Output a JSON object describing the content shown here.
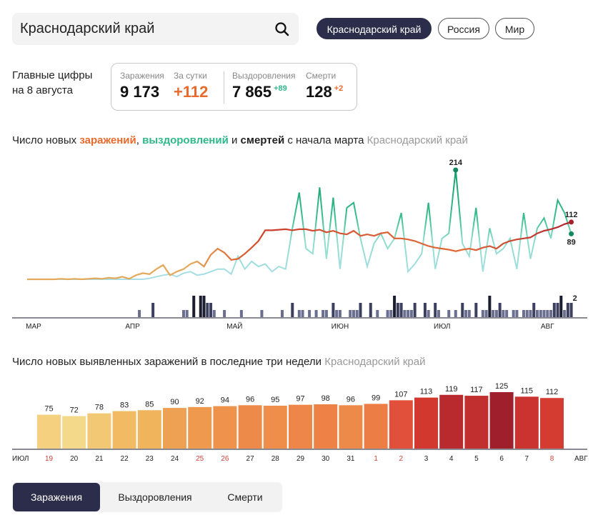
{
  "search": {
    "value": "Краснодарский край",
    "icon": "search-icon"
  },
  "region_pills": [
    {
      "label": "Краснодарский край",
      "active": true
    },
    {
      "label": "Россия",
      "active": false
    },
    {
      "label": "Мир",
      "active": false
    }
  ],
  "summary": {
    "heading_line1": "Главные цифры",
    "heading_line2": "на 8 августа",
    "cases": {
      "label": "Заражения",
      "value": "9 173"
    },
    "daily": {
      "label": "За сутки",
      "value": "+112"
    },
    "recovered": {
      "label": "Выздоровления",
      "value": "7 865",
      "delta": "+89"
    },
    "deaths": {
      "label": "Смерти",
      "value": "128",
      "delta": "+2"
    }
  },
  "colors": {
    "accent_orange": "#e86a2c",
    "accent_green": "#2fb889",
    "dark": "#2b2d4a",
    "weekend": "#d0433a"
  },
  "line_chart": {
    "title_prefix": "Число новых ",
    "title_cases": "заражений",
    "title_comma": ", ",
    "title_recovered": "выздоровлений",
    "title_and": " и ",
    "title_deaths": "смертей",
    "title_suffix": " с начала марта",
    "title_region": "Краснодарский край",
    "peak_label": "214",
    "last_cases_label": "112",
    "last_recovered_label": "89",
    "last_deaths_label": "2",
    "months": [
      "МАР",
      "АПР",
      "МАЙ",
      "ИЮН",
      "ИЮЛ",
      "АВГ"
    ]
  },
  "chart_data": [
    {
      "type": "line",
      "title": "Число новых заражений, выздоровлений и смертей с начала марта",
      "x_start": "1 марта",
      "x_end": "8 августа",
      "step_days": 2,
      "series": [
        {
          "name": "заражения",
          "values": [
            0,
            0,
            0,
            0,
            0,
            1,
            0,
            1,
            0,
            1,
            2,
            1,
            3,
            2,
            5,
            1,
            8,
            12,
            10,
            20,
            28,
            8,
            15,
            20,
            30,
            35,
            25,
            48,
            60,
            52,
            38,
            40,
            50,
            62,
            75,
            96,
            96,
            97,
            98,
            96,
            98,
            98,
            95,
            97,
            92,
            95,
            90,
            88,
            95,
            85,
            88,
            85,
            90,
            92,
            80,
            80,
            78,
            75,
            70,
            65,
            62,
            60,
            58,
            55,
            58,
            60,
            57,
            62,
            65,
            60,
            70,
            75,
            78,
            80,
            82,
            90,
            95,
            98,
            102,
            108,
            112
          ]
        },
        {
          "name": "выздоровления",
          "values": [
            0,
            0,
            0,
            0,
            0,
            0,
            0,
            0,
            0,
            0,
            0,
            0,
            0,
            0,
            0,
            0,
            0,
            0,
            2,
            5,
            8,
            10,
            5,
            12,
            15,
            8,
            10,
            15,
            20,
            20,
            10,
            45,
            20,
            35,
            25,
            30,
            15,
            25,
            20,
            100,
            170,
            60,
            50,
            180,
            40,
            160,
            20,
            140,
            150,
            80,
            25,
            70,
            90,
            60,
            80,
            130,
            15,
            30,
            50,
            150,
            20,
            80,
            90,
            214,
            70,
            45,
            140,
            15,
            100,
            50,
            60,
            80,
            20,
            130,
            40,
            100,
            120,
            80,
            155,
            130,
            89
          ]
        },
        {
          "name": "смерти",
          "step_days": 1,
          "values": [
            0,
            0,
            0,
            0,
            0,
            0,
            0,
            0,
            0,
            0,
            0,
            0,
            0,
            0,
            0,
            0,
            0,
            0,
            0,
            0,
            0,
            0,
            0,
            0,
            0,
            0,
            0,
            0,
            0,
            0,
            0,
            0,
            0,
            1,
            0,
            0,
            0,
            2,
            0,
            0,
            0,
            0,
            0,
            0,
            0,
            0,
            1,
            1,
            0,
            3,
            0,
            3,
            3,
            2,
            2,
            1,
            0,
            0,
            1,
            0,
            0,
            0,
            0,
            1,
            0,
            0,
            0,
            0,
            0,
            1,
            0,
            0,
            0,
            0,
            0,
            1,
            0,
            0,
            2,
            0,
            1,
            1,
            0,
            1,
            0,
            1,
            0,
            1,
            1,
            0,
            2,
            1,
            1,
            0,
            0,
            1,
            1,
            1,
            2,
            0,
            0,
            2,
            0,
            1,
            0,
            0,
            1,
            1,
            3,
            2,
            2,
            1,
            1,
            1,
            2,
            0,
            0,
            2,
            1,
            0,
            2,
            1,
            0,
            0,
            1,
            0,
            1,
            0,
            2,
            1,
            1,
            0,
            2,
            0,
            1,
            1,
            3,
            1,
            1,
            2,
            1,
            1,
            0,
            1,
            1,
            0,
            1,
            1,
            1,
            2,
            1,
            1,
            1,
            1,
            1,
            2,
            2,
            3,
            1,
            2,
            2
          ]
        }
      ],
      "ylim": [
        0,
        214
      ]
    },
    {
      "type": "bar",
      "title": "Число новых выявленных заражений в последние три недели",
      "region": "Краснодарский край",
      "month_start": "ИЮЛ",
      "month_end": "АВГ",
      "categories": [
        "19",
        "20",
        "21",
        "22",
        "23",
        "24",
        "25",
        "26",
        "27",
        "28",
        "29",
        "30",
        "31",
        "1",
        "2",
        "3",
        "4",
        "5",
        "6",
        "7",
        "8"
      ],
      "weekend": [
        true,
        false,
        false,
        false,
        false,
        false,
        true,
        true,
        false,
        false,
        false,
        false,
        false,
        true,
        true,
        false,
        false,
        false,
        false,
        false,
        true
      ],
      "values": [
        75,
        72,
        78,
        83,
        85,
        90,
        92,
        94,
        96,
        95,
        97,
        98,
        96,
        99,
        107,
        113,
        119,
        117,
        125,
        115,
        112
      ],
      "ylim": [
        0,
        130
      ]
    }
  ],
  "tabs": [
    {
      "label": "Заражения",
      "active": true
    },
    {
      "label": "Выздоровления",
      "active": false
    },
    {
      "label": "Смерти",
      "active": false
    }
  ]
}
